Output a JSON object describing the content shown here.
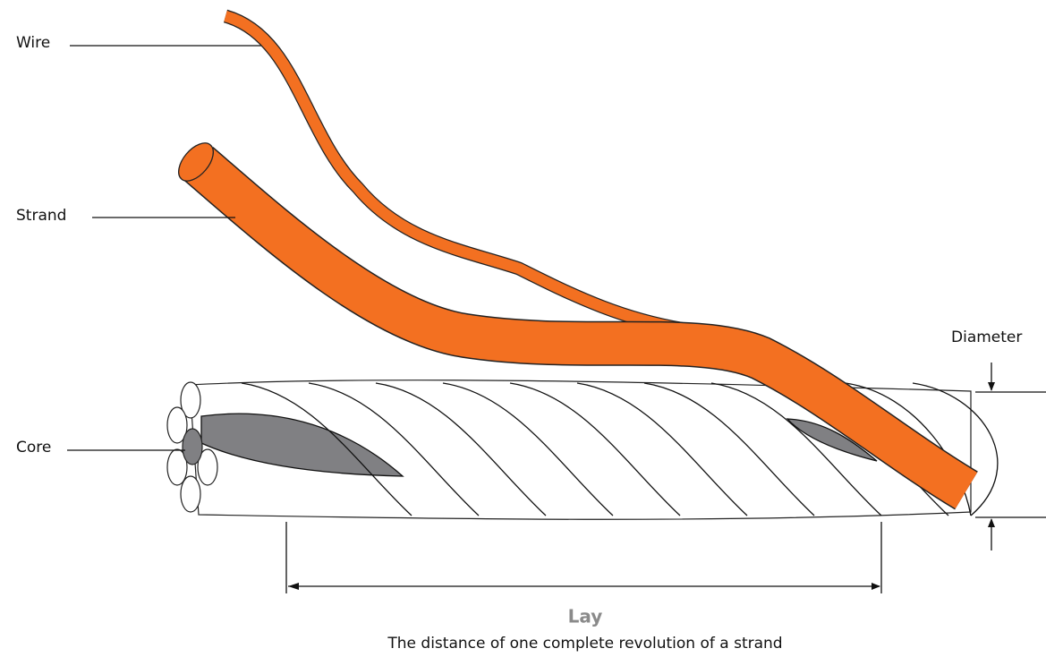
{
  "labels": {
    "wire": "Wire",
    "strand": "Strand",
    "core": "Core",
    "diameter": "Diameter"
  },
  "lay": {
    "title": "Lay",
    "description": "The distance of one complete revolution of a strand"
  }
}
